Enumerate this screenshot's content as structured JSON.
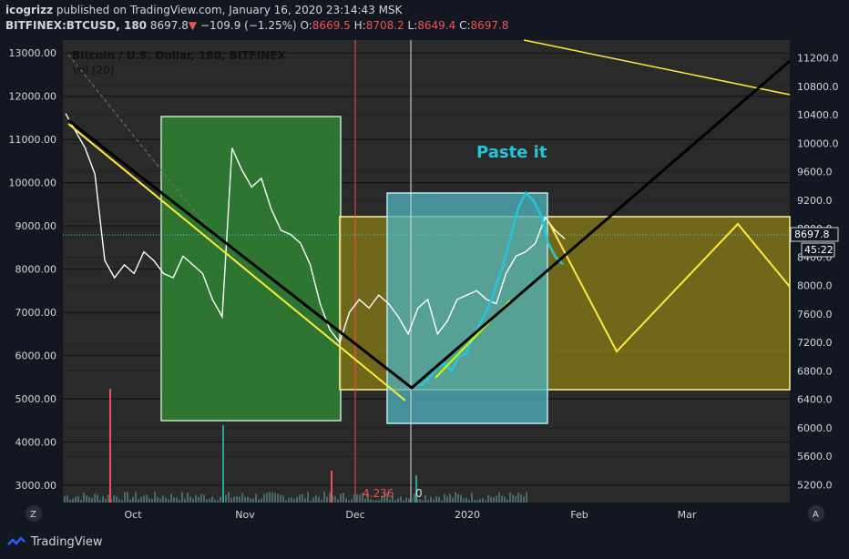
{
  "header": {
    "publisher": "icogrizz",
    "published_text": "published on TradingView.com, January 16, 2020 23:14:43 MSK",
    "symbol": "BITFINEX:BTCUSD, 180",
    "last": "8697.8",
    "change_arrow": "▼",
    "change": "−109.9 (−1.25%)",
    "o_label": "O:",
    "o_value": "8669.5",
    "h_label": "H:",
    "h_value": "8708.2",
    "l_label": "L:",
    "l_value": "8649.4",
    "c_label": "C:",
    "c_value": "8697.8"
  },
  "legend": {
    "title": "Bitcoin / U.S. Dollar, 180, BITFINEX",
    "volume": "Vol (20)"
  },
  "annotations": {
    "paste_it": "Paste it",
    "fib_label": "4.236",
    "zero_label": "0"
  },
  "price_badge": {
    "price": "8697.8",
    "countdown": "45:22"
  },
  "corner_left": "Z",
  "corner_right": "A",
  "footer": {
    "brand": "TradingView"
  },
  "colors": {
    "background": "#131722",
    "green_box": "#2e7d32",
    "cyan_box": "#4fb3bf",
    "olive_box": "#827717",
    "yellow_line": "#ffeb3b",
    "black_line": "#000000",
    "cyan_path": "#26c6da",
    "red_vline": "#ef5350"
  },
  "chart_data": [
    {
      "type": "line",
      "title": "Bitcoin / U.S. Dollar, 180, BITFINEX",
      "axis": "left",
      "yticks": [
        "13000.00",
        "12000.00",
        "11000.00",
        "10000.00",
        "9000.00",
        "8000.00",
        "7000.00",
        "6000.00",
        "5000.00",
        "4000.00",
        "3000.00"
      ],
      "ylim": [
        2600,
        13300
      ],
      "xticks": [
        "Oct",
        "Nov",
        "Dec",
        "2020",
        "Feb",
        "Mar"
      ],
      "series": [
        {
          "values": [
            11600,
            11200,
            10800,
            10200,
            8200,
            7800,
            8100,
            7900,
            8400,
            8200,
            7900,
            7800,
            8300,
            8100,
            7900,
            7300,
            6900,
            10800,
            10300,
            9900,
            10100,
            9400,
            8900,
            8800,
            8600,
            8100,
            7200,
            6600,
            6300,
            7000,
            7300,
            7100,
            7400,
            7200,
            6900,
            6500,
            7100,
            7300,
            6500,
            6800,
            7300,
            7400,
            7500,
            7300,
            7200,
            7900,
            8300,
            8400,
            8600,
            9200,
            8900,
            8700
          ]
        }
      ],
      "legend": "none",
      "grid": true
    },
    {
      "type": "line",
      "axis": "right",
      "yticks": [
        "11200.0",
        "10800.0",
        "10400.0",
        "10000.0",
        "9600.0",
        "9200.0",
        "8800.0",
        "8400.0",
        "8000.0",
        "7600.0",
        "7200.0",
        "6800.0",
        "6400.0",
        "6000.0",
        "5600.0",
        "5200.0"
      ],
      "ylim": [
        4950,
        11450
      ],
      "series": [
        {
          "values": [
            6600,
            6600,
            6700,
            6850,
            6900,
            6800,
            7000,
            7050,
            7300,
            7500,
            7700,
            8000,
            8300,
            8700,
            9100,
            9300,
            9200,
            9000,
            8600,
            8400,
            8300
          ]
        }
      ]
    }
  ]
}
